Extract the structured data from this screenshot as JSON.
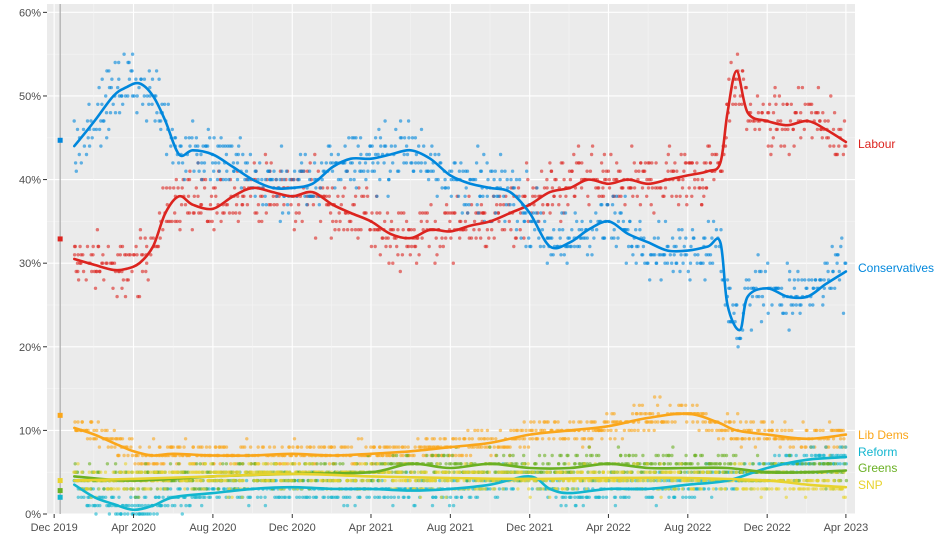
{
  "chart_data": {
    "type": "line",
    "ylim": [
      0,
      61
    ],
    "y_ticks": [
      0,
      10,
      20,
      30,
      40,
      50,
      60
    ],
    "y_tick_labels": [
      "0%",
      "10%",
      "20%",
      "30%",
      "40%",
      "50%",
      "60%"
    ],
    "x_ticks": [
      "2019-12-01",
      "2020-04-01",
      "2020-08-01",
      "2020-12-01",
      "2021-04-01",
      "2021-08-01",
      "2021-12-01",
      "2022-04-01",
      "2022-08-01",
      "2022-12-01",
      "2023-04-01"
    ],
    "x_tick_labels": [
      "Dec 2019",
      "Apr 2020",
      "Aug 2020",
      "Dec 2020",
      "Apr 2021",
      "Aug 2021",
      "Dec 2021",
      "Apr 2022",
      "Aug 2022",
      "Dec 2022",
      "Apr 2023"
    ],
    "xlim": [
      "2019-11-20",
      "2023-04-15"
    ],
    "grid": true,
    "election_markers": [
      {
        "party": "Conservatives",
        "value": 44.7
      },
      {
        "party": "Labour",
        "value": 32.9
      },
      {
        "party": "Lib Dems",
        "value": 11.8
      },
      {
        "party": "SNP",
        "value": 4.0
      },
      {
        "party": "Greens",
        "value": 2.8
      },
      {
        "party": "Reform",
        "value": 2.0
      }
    ],
    "series": [
      {
        "name": "Labour",
        "color": "#dc241f",
        "x": [
          "2020-01-01",
          "2020-02-01",
          "2020-03-01",
          "2020-03-20",
          "2020-04-10",
          "2020-05-01",
          "2020-05-20",
          "2020-06-10",
          "2020-07-01",
          "2020-08-01",
          "2020-09-01",
          "2020-10-01",
          "2020-11-01",
          "2020-12-01",
          "2021-01-01",
          "2021-02-01",
          "2021-03-01",
          "2021-04-01",
          "2021-05-01",
          "2021-06-01",
          "2021-07-01",
          "2021-08-01",
          "2021-09-01",
          "2021-10-01",
          "2021-11-01",
          "2021-12-01",
          "2022-01-01",
          "2022-02-01",
          "2022-03-01",
          "2022-04-01",
          "2022-05-01",
          "2022-06-01",
          "2022-07-01",
          "2022-08-01",
          "2022-09-01",
          "2022-09-20",
          "2022-10-01",
          "2022-10-15",
          "2022-11-01",
          "2022-12-01",
          "2023-01-01",
          "2023-02-01",
          "2023-03-01",
          "2023-04-01"
        ],
        "values": [
          30.5,
          29.8,
          29.2,
          29.3,
          30.0,
          32.0,
          36.0,
          38.0,
          37.0,
          36.5,
          38.0,
          39.0,
          38.5,
          38.0,
          38.5,
          37.0,
          36.0,
          35.0,
          33.5,
          33.0,
          34.0,
          33.8,
          34.5,
          35.0,
          36.0,
          37.0,
          38.5,
          39.0,
          40.0,
          39.5,
          40.0,
          39.5,
          40.0,
          40.5,
          41.0,
          42.0,
          48.0,
          53.0,
          48.0,
          47.0,
          46.5,
          47.0,
          46.0,
          44.5
        ]
      },
      {
        "name": "Conservatives",
        "color": "#0087dc",
        "x": [
          "2020-01-01",
          "2020-02-01",
          "2020-03-01",
          "2020-03-20",
          "2020-04-10",
          "2020-05-01",
          "2020-05-20",
          "2020-06-10",
          "2020-07-01",
          "2020-08-01",
          "2020-09-01",
          "2020-10-01",
          "2020-11-01",
          "2020-12-01",
          "2021-01-01",
          "2021-02-01",
          "2021-03-01",
          "2021-04-01",
          "2021-05-01",
          "2021-06-01",
          "2021-07-01",
          "2021-08-01",
          "2021-09-01",
          "2021-10-01",
          "2021-11-01",
          "2021-12-01",
          "2022-01-01",
          "2022-02-01",
          "2022-03-01",
          "2022-04-01",
          "2022-05-01",
          "2022-06-01",
          "2022-07-01",
          "2022-08-01",
          "2022-09-01",
          "2022-09-20",
          "2022-10-01",
          "2022-10-20",
          "2022-11-01",
          "2022-12-01",
          "2023-01-01",
          "2023-02-01",
          "2023-03-01",
          "2023-04-01"
        ],
        "values": [
          44.0,
          47.0,
          50.0,
          51.0,
          51.5,
          50.0,
          47.0,
          43.0,
          43.5,
          43.0,
          41.5,
          40.0,
          39.0,
          39.0,
          39.5,
          41.5,
          42.5,
          42.5,
          43.0,
          43.5,
          42.5,
          40.5,
          39.5,
          39.0,
          38.5,
          36.0,
          32.0,
          32.5,
          34.0,
          35.0,
          33.5,
          32.5,
          31.5,
          31.5,
          32.0,
          32.5,
          25.0,
          22.0,
          26.0,
          27.0,
          26.0,
          26.0,
          27.5,
          29.0
        ]
      },
      {
        "name": "Lib Dems",
        "color": "#faa61a",
        "x": [
          "2020-01-01",
          "2020-02-01",
          "2020-03-01",
          "2020-04-01",
          "2020-05-01",
          "2020-06-01",
          "2020-08-01",
          "2020-10-01",
          "2020-12-01",
          "2021-02-01",
          "2021-04-01",
          "2021-06-01",
          "2021-08-01",
          "2021-10-01",
          "2021-12-01",
          "2022-02-01",
          "2022-04-01",
          "2022-06-01",
          "2022-08-01",
          "2022-09-15",
          "2022-10-15",
          "2022-12-01",
          "2023-02-01",
          "2023-04-01"
        ],
        "values": [
          10.3,
          9.5,
          8.5,
          7.5,
          7.0,
          7.2,
          7.0,
          7.0,
          7.2,
          7.0,
          7.2,
          7.5,
          8.0,
          8.5,
          9.5,
          10.0,
          10.5,
          11.5,
          12.0,
          11.0,
          10.0,
          9.5,
          9.0,
          9.5
        ]
      },
      {
        "name": "Reform",
        "color": "#12b6cf",
        "x": [
          "2020-01-01",
          "2020-02-01",
          "2020-03-01",
          "2020-04-01",
          "2020-05-01",
          "2020-06-01",
          "2020-08-01",
          "2020-10-01",
          "2020-12-01",
          "2021-02-01",
          "2021-04-01",
          "2021-06-01",
          "2021-08-01",
          "2021-10-01",
          "2021-12-01",
          "2022-01-01",
          "2022-02-01",
          "2022-04-01",
          "2022-06-01",
          "2022-08-01",
          "2022-10-01",
          "2022-12-01",
          "2023-02-01",
          "2023-04-01"
        ],
        "values": [
          3.5,
          2.0,
          1.2,
          0.5,
          1.0,
          2.0,
          2.5,
          3.0,
          3.2,
          3.0,
          3.0,
          2.8,
          3.0,
          3.5,
          4.5,
          3.0,
          2.5,
          3.0,
          3.0,
          3.5,
          4.0,
          5.5,
          6.5,
          6.8
        ]
      },
      {
        "name": "Greens",
        "color": "#6ab023",
        "x": [
          "2020-01-01",
          "2020-04-01",
          "2020-08-01",
          "2020-12-01",
          "2021-04-01",
          "2021-06-01",
          "2021-08-01",
          "2021-10-01",
          "2021-12-01",
          "2022-02-01",
          "2022-04-01",
          "2022-06-01",
          "2022-08-01",
          "2022-10-01",
          "2022-12-01",
          "2023-02-01",
          "2023-04-01"
        ],
        "values": [
          4.5,
          4.0,
          4.5,
          4.8,
          5.0,
          6.0,
          5.5,
          6.0,
          5.5,
          5.5,
          6.0,
          5.5,
          5.5,
          5.5,
          5.0,
          5.0,
          5.2
        ]
      },
      {
        "name": "SNP",
        "color": "#e8d32e",
        "x": [
          "2020-01-01",
          "2020-04-01",
          "2020-08-01",
          "2020-12-01",
          "2021-04-01",
          "2021-08-01",
          "2021-12-01",
          "2022-04-01",
          "2022-08-01",
          "2022-12-01",
          "2023-02-01",
          "2023-04-01"
        ],
        "values": [
          4.0,
          4.2,
          4.5,
          4.8,
          4.5,
          4.3,
          4.2,
          4.3,
          4.3,
          4.0,
          3.5,
          3.2
        ]
      }
    ]
  }
}
